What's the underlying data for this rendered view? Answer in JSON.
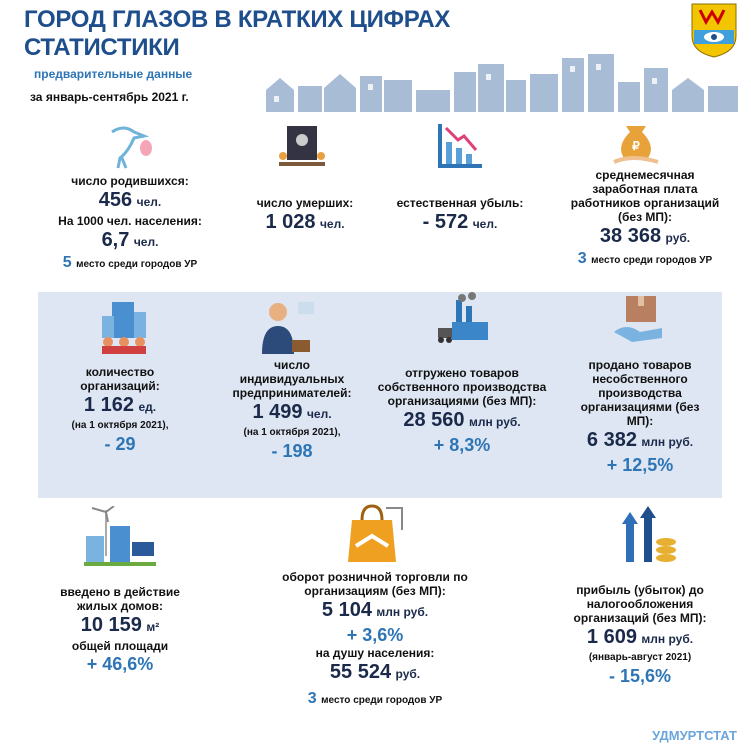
{
  "header": {
    "title": [
      "ГОРОД ГЛАЗОВ  В КРАТКИХ ЦИФРАХ",
      "СТАТИСТИКИ"
    ],
    "subtitle": "предварительные данные",
    "period": "за январь-сентябрь 2021 г."
  },
  "blocks": [
    {
      "label": "число родившихся:",
      "value": "456",
      "unit": "чел.",
      "sub_label": "На 1000  чел. населения:",
      "sub_value": "6,7",
      "sub_unit": "чел.",
      "rank": "5",
      "rank_text": "место среди городов УР"
    },
    {
      "label": "число умерших:",
      "value": "1 028",
      "unit": "чел."
    },
    {
      "label": "естественная убыль:",
      "value": "- 572",
      "unit": "чел."
    },
    {
      "label": "среднемесячная заработная плата работников организаций (без МП):",
      "value": "38 368",
      "unit": "руб.",
      "rank": "3",
      "rank_text": "место среди городов УР"
    },
    {
      "label": "количество организаций:",
      "value": "1 162",
      "unit": "ед.",
      "note": "(на 1 октября 2021),",
      "change": "- 29"
    },
    {
      "label": "число индивидуальных предпринимателей:",
      "value": "1 499",
      "unit": "чел.",
      "note": "(на 1 октября 2021),",
      "change": "- 198"
    },
    {
      "label": "отгружено товаров собственного производства организациями (без МП):",
      "value": "28 560",
      "unit": "млн руб.",
      "change": "+ 8,3%"
    },
    {
      "label": "продано товаров несобственного производства организациями (без МП):",
      "value": "6 382",
      "unit": "млн руб.",
      "change": "+ 12,5%"
    },
    {
      "label": "введено в действие жилых домов:",
      "value": "10 159",
      "unit": "м²",
      "sub_label": "общей площади",
      "change": "+ 46,6%"
    },
    {
      "label": "оборот розничной торговли по организациям (без МП):",
      "value": "5 104",
      "unit": "млн руб.",
      "change": "+ 3,6%",
      "sub_label": "на душу населения:",
      "sub_value": "55 524",
      "sub_unit": "руб.",
      "rank": "3",
      "rank_text": "место среди городов УР"
    },
    {
      "label": "прибыль (убыток) до налогообложения организаций (без МП):",
      "value": "1 609",
      "unit": "млн руб.",
      "note": "(январь-август 2021)",
      "change": "- 15,6%"
    }
  ],
  "footer": "УДМУРТСТАТ"
}
